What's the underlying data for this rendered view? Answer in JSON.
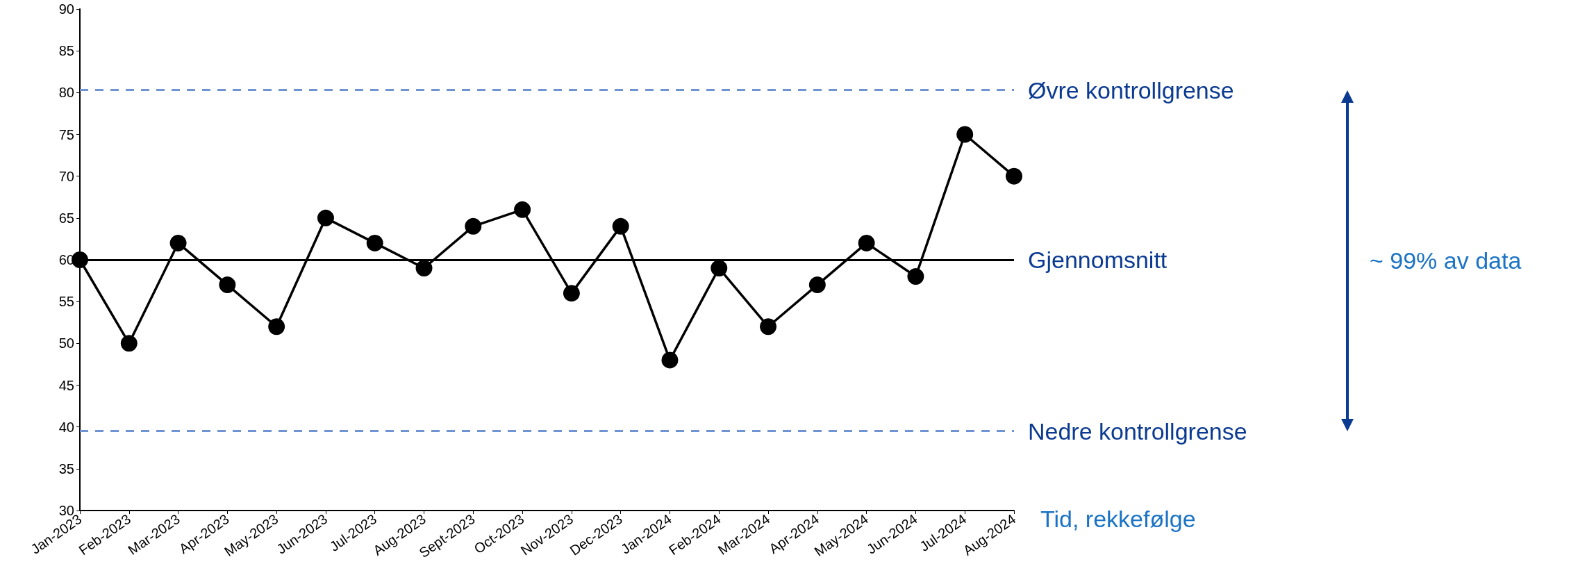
{
  "chart_data": {
    "type": "line",
    "xlabel": "Tid, rekkefølge",
    "categories": [
      "Jan-2023",
      "Feb-2023",
      "Mar-2023",
      "Apr-2023",
      "May-2023",
      "Jun-2023",
      "Jul-2023",
      "Aug-2023",
      "Sept-2023",
      "Oct-2023",
      "Nov-2023",
      "Dec-2023",
      "Jan-2024",
      "Feb-2024",
      "Mar-2024",
      "Apr-2024",
      "May-2024",
      "Jun-2024",
      "Jul-2024",
      "Aug-2024"
    ],
    "series": [
      {
        "color": "#000000",
        "values": [
          60,
          50,
          62,
          57,
          52,
          65,
          62,
          59,
          64,
          66,
          56,
          64,
          48,
          59,
          52,
          57,
          62,
          58,
          75,
          70
        ]
      }
    ],
    "ylim": [
      30,
      90
    ],
    "yticks": [
      30,
      35,
      40,
      45,
      50,
      55,
      60,
      65,
      70,
      75,
      80,
      85,
      90
    ],
    "grid": false,
    "marker": "circle",
    "line_style": "solid",
    "ref_lines": [
      {
        "axis": "y",
        "value": 80.3,
        "label": "Øvre kontrollgrense",
        "color": "#7094d2",
        "line_style": "dashed"
      },
      {
        "axis": "y",
        "value": 60,
        "label": "Gjennomsnitt",
        "color": "#000000",
        "line_style": "solid"
      },
      {
        "axis": "y",
        "value": 39.5,
        "label": "Nedre kontrollgrense",
        "color": "#7094d2",
        "line_style": "dashed"
      }
    ],
    "annotations": [
      "~ 99% av data"
    ]
  }
}
